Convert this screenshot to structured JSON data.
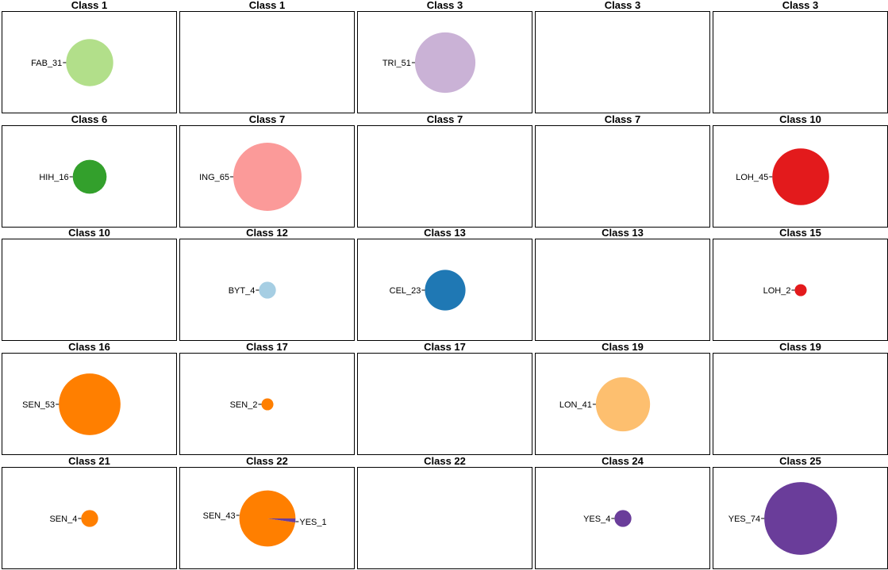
{
  "chart_data": [
    {
      "type": "pie",
      "title": "Class 1",
      "slices": [
        {
          "label": "FAB_31",
          "value": 31,
          "color": "#b2df8a"
        }
      ]
    },
    {
      "type": "pie",
      "title": "Class 1",
      "slices": []
    },
    {
      "type": "pie",
      "title": "Class 3",
      "slices": [
        {
          "label": "TRI_51",
          "value": 51,
          "color": "#cab2d6"
        }
      ]
    },
    {
      "type": "pie",
      "title": "Class 3",
      "slices": []
    },
    {
      "type": "pie",
      "title": "Class 3",
      "slices": []
    },
    {
      "type": "pie",
      "title": "Class 6",
      "slices": [
        {
          "label": "HIH_16",
          "value": 16,
          "color": "#33a02c"
        }
      ]
    },
    {
      "type": "pie",
      "title": "Class 7",
      "slices": [
        {
          "label": "ING_65",
          "value": 65,
          "color": "#fb9a99"
        }
      ]
    },
    {
      "type": "pie",
      "title": "Class 7",
      "slices": []
    },
    {
      "type": "pie",
      "title": "Class 7",
      "slices": []
    },
    {
      "type": "pie",
      "title": "Class 10",
      "slices": [
        {
          "label": "LOH_45",
          "value": 45,
          "color": "#e31a1c"
        }
      ]
    },
    {
      "type": "pie",
      "title": "Class 10",
      "slices": []
    },
    {
      "type": "pie",
      "title": "Class 12",
      "slices": [
        {
          "label": "BYT_4",
          "value": 4,
          "color": "#a6cee3"
        }
      ]
    },
    {
      "type": "pie",
      "title": "Class 13",
      "slices": [
        {
          "label": "CEL_23",
          "value": 23,
          "color": "#1f78b4"
        }
      ]
    },
    {
      "type": "pie",
      "title": "Class 13",
      "slices": []
    },
    {
      "type": "pie",
      "title": "Class 15",
      "slices": [
        {
          "label": "LOH_2",
          "value": 2,
          "color": "#e31a1c"
        }
      ]
    },
    {
      "type": "pie",
      "title": "Class 16",
      "slices": [
        {
          "label": "SEN_53",
          "value": 53,
          "color": "#ff7f00"
        }
      ]
    },
    {
      "type": "pie",
      "title": "Class 17",
      "slices": [
        {
          "label": "SEN_2",
          "value": 2,
          "color": "#ff7f00"
        }
      ]
    },
    {
      "type": "pie",
      "title": "Class 17",
      "slices": []
    },
    {
      "type": "pie",
      "title": "Class 19",
      "slices": [
        {
          "label": "LON_41",
          "value": 41,
          "color": "#fdbf6f"
        }
      ]
    },
    {
      "type": "pie",
      "title": "Class 19",
      "slices": []
    },
    {
      "type": "pie",
      "title": "Class 21",
      "slices": [
        {
          "label": "SEN_4",
          "value": 4,
          "color": "#ff7f00"
        }
      ]
    },
    {
      "type": "pie",
      "title": "Class 22",
      "slices": [
        {
          "label": "SEN_43",
          "value": 43,
          "color": "#ff7f00"
        },
        {
          "label": "YES_1",
          "value": 1,
          "color": "#6a3d9a"
        }
      ]
    },
    {
      "type": "pie",
      "title": "Class 22",
      "slices": []
    },
    {
      "type": "pie",
      "title": "Class 24",
      "slices": [
        {
          "label": "YES_4",
          "value": 4,
          "color": "#6a3d9a"
        }
      ]
    },
    {
      "type": "pie",
      "title": "Class 25",
      "slices": [
        {
          "label": "YES_74",
          "value": 74,
          "color": "#6a3d9a"
        }
      ]
    }
  ]
}
